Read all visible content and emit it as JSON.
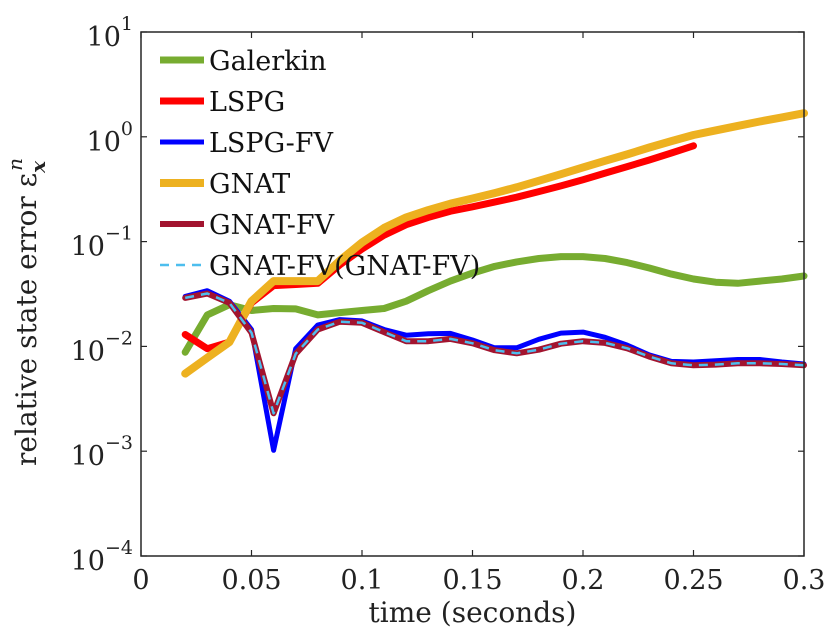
{
  "chart_data": {
    "type": "line",
    "xlabel": "time (seconds)",
    "ylabel": "relative state error ε",
    "ylabel_sup": "n",
    "ylabel_sub": "x",
    "xlim": [
      0,
      0.3
    ],
    "ylim": [
      0.0001,
      10
    ],
    "yscale": "log",
    "grid": false,
    "legend_position": "top-left",
    "xticks": [
      {
        "value": 0,
        "label": "0"
      },
      {
        "value": 0.05,
        "label": "0.05"
      },
      {
        "value": 0.1,
        "label": "0.1"
      },
      {
        "value": 0.15,
        "label": "0.15"
      },
      {
        "value": 0.2,
        "label": "0.2"
      },
      {
        "value": 0.25,
        "label": "0.25"
      },
      {
        "value": 0.3,
        "label": "0.3"
      }
    ],
    "yticks": [
      {
        "value": 10,
        "base": "10",
        "exp": "1"
      },
      {
        "value": 1,
        "base": "10",
        "exp": "0"
      },
      {
        "value": 0.1,
        "base": "10",
        "exp": "−1"
      },
      {
        "value": 0.01,
        "base": "10",
        "exp": "−2"
      },
      {
        "value": 0.001,
        "base": "10",
        "exp": "−3"
      },
      {
        "value": 0.0001,
        "base": "10",
        "exp": "−4"
      }
    ],
    "series": [
      {
        "name": "Galerkin",
        "color": "#77AC30",
        "width": 7,
        "dash": "",
        "x": [
          0.02,
          0.03,
          0.04,
          0.05,
          0.06,
          0.07,
          0.08,
          0.09,
          0.1,
          0.11,
          0.12,
          0.13,
          0.14,
          0.15,
          0.16,
          0.17,
          0.18,
          0.19,
          0.2,
          0.21,
          0.22,
          0.23,
          0.24,
          0.25,
          0.26,
          0.27,
          0.28,
          0.29,
          0.3
        ],
        "y": [
          0.0088,
          0.02,
          0.025,
          0.022,
          0.023,
          0.0228,
          0.02,
          0.021,
          0.022,
          0.023,
          0.027,
          0.034,
          0.042,
          0.05,
          0.058,
          0.064,
          0.069,
          0.072,
          0.072,
          0.069,
          0.063,
          0.056,
          0.049,
          0.044,
          0.041,
          0.04,
          0.042,
          0.044,
          0.047
        ]
      },
      {
        "name": "LSPG",
        "color": "#FF0000",
        "width": 7,
        "dash": "",
        "x": [
          0.02,
          0.03,
          0.04,
          0.05,
          0.06,
          0.07,
          0.08,
          0.09,
          0.1,
          0.11,
          0.12,
          0.13,
          0.14,
          0.15,
          0.16,
          0.17,
          0.18,
          0.19,
          0.2,
          0.21,
          0.22,
          0.23,
          0.24,
          0.25
        ],
        "y": [
          0.013,
          0.0095,
          0.011,
          0.026,
          0.038,
          0.039,
          0.04,
          0.06,
          0.085,
          0.115,
          0.145,
          0.17,
          0.195,
          0.215,
          0.238,
          0.265,
          0.3,
          0.34,
          0.39,
          0.45,
          0.52,
          0.6,
          0.7,
          0.82
        ]
      },
      {
        "name": "LSPG-FV",
        "color": "#0000FF",
        "width": 5,
        "dash": "",
        "x": [
          0.02,
          0.03,
          0.04,
          0.05,
          0.06,
          0.07,
          0.08,
          0.09,
          0.1,
          0.11,
          0.12,
          0.13,
          0.14,
          0.15,
          0.16,
          0.17,
          0.18,
          0.19,
          0.2,
          0.21,
          0.22,
          0.23,
          0.24,
          0.25,
          0.26,
          0.27,
          0.28,
          0.29,
          0.3
        ],
        "y": [
          0.03,
          0.034,
          0.027,
          0.0145,
          0.00102,
          0.0095,
          0.016,
          0.018,
          0.0175,
          0.0145,
          0.0128,
          0.0132,
          0.0133,
          0.0115,
          0.0097,
          0.0097,
          0.0117,
          0.0134,
          0.0137,
          0.0122,
          0.0103,
          0.0083,
          0.0072,
          0.0071,
          0.0073,
          0.0075,
          0.0075,
          0.0071,
          0.0068
        ]
      },
      {
        "name": "GNAT",
        "color": "#EDB120",
        "width": 8,
        "dash": "",
        "x": [
          0.02,
          0.03,
          0.04,
          0.05,
          0.06,
          0.07,
          0.08,
          0.09,
          0.1,
          0.11,
          0.12,
          0.13,
          0.14,
          0.15,
          0.16,
          0.17,
          0.18,
          0.19,
          0.2,
          0.21,
          0.22,
          0.23,
          0.24,
          0.25,
          0.26,
          0.27,
          0.28,
          0.29,
          0.3
        ],
        "y": [
          0.0055,
          0.0078,
          0.011,
          0.027,
          0.042,
          0.042,
          0.042,
          0.066,
          0.098,
          0.135,
          0.17,
          0.2,
          0.23,
          0.258,
          0.29,
          0.33,
          0.38,
          0.44,
          0.51,
          0.59,
          0.68,
          0.79,
          0.91,
          1.04,
          1.15,
          1.27,
          1.4,
          1.53,
          1.68
        ]
      },
      {
        "name": "GNAT-FV",
        "color": "#A2142F",
        "width": 6,
        "dash": "",
        "x": [
          0.02,
          0.03,
          0.04,
          0.05,
          0.06,
          0.07,
          0.08,
          0.09,
          0.1,
          0.11,
          0.12,
          0.13,
          0.14,
          0.15,
          0.16,
          0.17,
          0.18,
          0.19,
          0.2,
          0.21,
          0.22,
          0.23,
          0.24,
          0.25,
          0.26,
          0.27,
          0.28,
          0.29,
          0.3
        ],
        "y": [
          0.029,
          0.032,
          0.026,
          0.0135,
          0.0023,
          0.0085,
          0.0145,
          0.0172,
          0.0168,
          0.0137,
          0.0112,
          0.0112,
          0.0118,
          0.0107,
          0.0092,
          0.0086,
          0.0093,
          0.0106,
          0.0112,
          0.0108,
          0.0096,
          0.008,
          0.0069,
          0.0066,
          0.0067,
          0.0069,
          0.0069,
          0.0068,
          0.0066
        ]
      },
      {
        "name": "GNAT-FV(GNAT-FV)",
        "color": "#4DBEEE",
        "width": 2.5,
        "dash": "9 7",
        "x": [
          0.02,
          0.03,
          0.04,
          0.05,
          0.06,
          0.07,
          0.08,
          0.09,
          0.1,
          0.11,
          0.12,
          0.13,
          0.14,
          0.15,
          0.16,
          0.17,
          0.18,
          0.19,
          0.2,
          0.21,
          0.22,
          0.23,
          0.24,
          0.25,
          0.26,
          0.27,
          0.28,
          0.29,
          0.3
        ],
        "y": [
          0.029,
          0.032,
          0.026,
          0.0135,
          0.0023,
          0.0085,
          0.0145,
          0.0172,
          0.0168,
          0.0137,
          0.0112,
          0.0112,
          0.0118,
          0.0107,
          0.0092,
          0.0086,
          0.0093,
          0.0106,
          0.0112,
          0.0108,
          0.0096,
          0.008,
          0.0069,
          0.0066,
          0.0067,
          0.0069,
          0.0069,
          0.0068,
          0.0066
        ]
      }
    ]
  }
}
